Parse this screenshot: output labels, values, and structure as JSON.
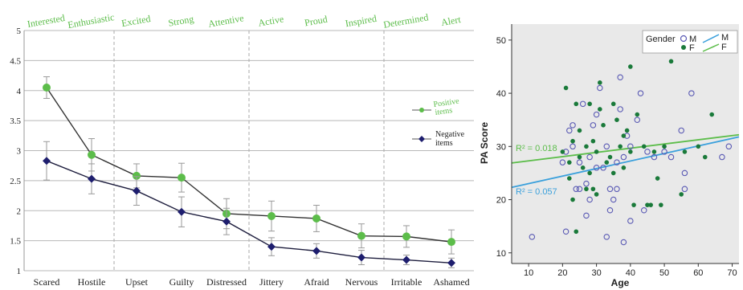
{
  "chart_data": [
    {
      "type": "line",
      "top_labels": [
        "Interested",
        "Enthusiastic",
        "Excited",
        "Strong",
        "Attentive",
        "Active",
        "Proud",
        "Inspired",
        "Determined",
        "Alert"
      ],
      "categories": [
        "Scared",
        "Hostile",
        "Upset",
        "Guilty",
        "Distressed",
        "Jittery",
        "Afraid",
        "Nervous",
        "Irritable",
        "Ashamed"
      ],
      "ylim": [
        1,
        5
      ],
      "yticks": [
        "1",
        "1.5",
        "2",
        "2.5",
        "3",
        "3.5",
        "4",
        "4.5",
        "5"
      ],
      "grid": true,
      "legend_placement": "right",
      "series": [
        {
          "name": "Positive items",
          "legend_lines": [
            "Positive",
            "items"
          ],
          "color": "#5cbd4a",
          "values": [
            4.05,
            2.93,
            2.58,
            2.55,
            1.95,
            1.91,
            1.87,
            1.58,
            1.57,
            1.48
          ],
          "error": [
            0.18,
            0.27,
            0.2,
            0.24,
            0.25,
            0.25,
            0.22,
            0.2,
            0.18,
            0.2
          ]
        },
        {
          "name": "Negative items",
          "legend_lines": [
            "Negative",
            "items"
          ],
          "color": "#1e1e6e",
          "values": [
            2.83,
            2.53,
            2.33,
            1.98,
            1.82,
            1.4,
            1.33,
            1.22,
            1.18,
            1.13
          ],
          "error": [
            0.32,
            0.25,
            0.24,
            0.25,
            0.22,
            0.15,
            0.12,
            0.12,
            0.08,
            0.08
          ]
        }
      ]
    },
    {
      "type": "scatter",
      "xlabel": "Age",
      "ylabel": "PA Score",
      "xlim": [
        5,
        72
      ],
      "ylim": [
        8,
        53
      ],
      "xticks": [
        10,
        20,
        30,
        40,
        50,
        60,
        70
      ],
      "yticks": [
        10,
        20,
        30,
        40,
        50
      ],
      "legend_title": "Gender",
      "legend_placement": "top-right",
      "series": [
        {
          "name": "M",
          "marker": "open-circle",
          "color": "#5a5ab4",
          "fit_color": "#3aa0dc",
          "r2_label": "R² = 0.057",
          "fit_line": {
            "x": [
              5,
              72
            ],
            "y": [
              22.3,
              31.8
            ]
          },
          "points": [
            [
              11,
              13
            ],
            [
              21,
              14
            ],
            [
              20,
              27
            ],
            [
              21,
              29
            ],
            [
              22,
              33
            ],
            [
              23,
              30
            ],
            [
              23,
              34
            ],
            [
              24,
              22
            ],
            [
              25,
              22
            ],
            [
              25,
              27
            ],
            [
              26,
              38
            ],
            [
              27,
              23
            ],
            [
              27,
              17
            ],
            [
              28,
              20
            ],
            [
              28,
              28
            ],
            [
              29,
              34
            ],
            [
              30,
              26
            ],
            [
              30,
              36
            ],
            [
              31,
              41
            ],
            [
              32,
              26
            ],
            [
              33,
              30
            ],
            [
              33,
              13
            ],
            [
              34,
              22
            ],
            [
              34,
              18
            ],
            [
              35,
              20
            ],
            [
              36,
              27
            ],
            [
              36,
              22
            ],
            [
              37,
              37
            ],
            [
              37,
              43
            ],
            [
              38,
              28
            ],
            [
              38,
              12
            ],
            [
              39,
              32
            ],
            [
              40,
              30
            ],
            [
              40,
              16
            ],
            [
              42,
              35
            ],
            [
              43,
              40
            ],
            [
              44,
              18
            ],
            [
              45,
              29
            ],
            [
              47,
              28
            ],
            [
              50,
              29
            ],
            [
              52,
              28
            ],
            [
              55,
              33
            ],
            [
              56,
              25
            ],
            [
              56,
              22
            ],
            [
              58,
              40
            ],
            [
              67,
              28
            ],
            [
              69,
              30
            ]
          ]
        },
        {
          "name": "F",
          "marker": "filled-circle",
          "color": "#1a7a3a",
          "fit_color": "#5cbd4a",
          "r2_label": "R² = 0.018",
          "fit_line": {
            "x": [
              5,
              72
            ],
            "y": [
              26.9,
              32.2
            ]
          },
          "points": [
            [
              20,
              29
            ],
            [
              21,
              41
            ],
            [
              22,
              27
            ],
            [
              22,
              24
            ],
            [
              23,
              20
            ],
            [
              23,
              31
            ],
            [
              24,
              38
            ],
            [
              24,
              14
            ],
            [
              25,
              28
            ],
            [
              25,
              33
            ],
            [
              26,
              26
            ],
            [
              27,
              30
            ],
            [
              27,
              22
            ],
            [
              28,
              38
            ],
            [
              28,
              25
            ],
            [
              29,
              22
            ],
            [
              29,
              31
            ],
            [
              30,
              21
            ],
            [
              30,
              29
            ],
            [
              31,
              37
            ],
            [
              31,
              42
            ],
            [
              32,
              34
            ],
            [
              33,
              27
            ],
            [
              34,
              28
            ],
            [
              35,
              38
            ],
            [
              35,
              25
            ],
            [
              36,
              35
            ],
            [
              37,
              30
            ],
            [
              38,
              32
            ],
            [
              38,
              26
            ],
            [
              39,
              33
            ],
            [
              40,
              29
            ],
            [
              40,
              45
            ],
            [
              41,
              19
            ],
            [
              42,
              36
            ],
            [
              44,
              30
            ],
            [
              45,
              19
            ],
            [
              46,
              19
            ],
            [
              47,
              29
            ],
            [
              48,
              24
            ],
            [
              49,
              19
            ],
            [
              50,
              30
            ],
            [
              52,
              46
            ],
            [
              55,
              21
            ],
            [
              56,
              29
            ],
            [
              60,
              30
            ],
            [
              62,
              28
            ],
            [
              64,
              36
            ]
          ]
        }
      ]
    }
  ]
}
